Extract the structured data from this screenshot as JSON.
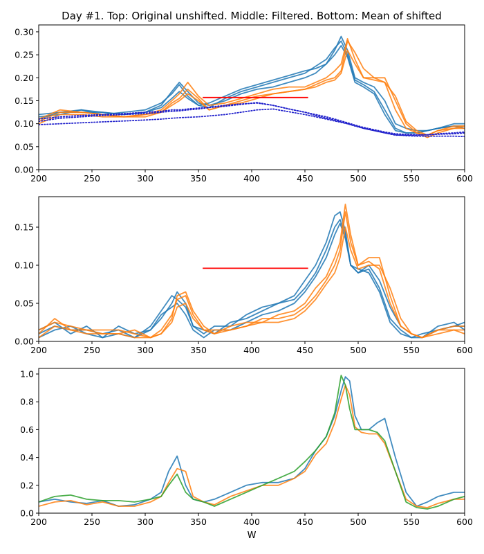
{
  "title": "Day #1. Top: Original unshifted. Middle: Filtered. Bottom: Mean of shifted",
  "colors": {
    "blue": "#1f77b4",
    "orange": "#ff7f0e",
    "green": "#2ca02c",
    "red": "#ff0000",
    "dotted": "#2222cc"
  },
  "chart_data": [
    {
      "type": "line",
      "panel": "top",
      "xlabel": "",
      "ylabel": "",
      "xlim": [
        200,
        600
      ],
      "ylim": [
        0,
        0.315
      ],
      "xticks": [
        200,
        250,
        300,
        350,
        400,
        450,
        500,
        550,
        600
      ],
      "yticks": [
        0.0,
        0.05,
        0.1,
        0.15,
        0.2,
        0.25,
        0.3
      ],
      "ytick_decimals": 2,
      "x": [
        200,
        220,
        240,
        260,
        280,
        300,
        315,
        325,
        332,
        340,
        350,
        360,
        375,
        390,
        405,
        420,
        435,
        450,
        460,
        470,
        478,
        484,
        490,
        497,
        505,
        515,
        525,
        535,
        545,
        555,
        565,
        575,
        590,
        600
      ],
      "series": [
        {
          "color": "blue",
          "values": [
            0.12,
            0.125,
            0.13,
            0.125,
            0.12,
            0.125,
            0.14,
            0.17,
            0.19,
            0.17,
            0.145,
            0.14,
            0.15,
            0.165,
            0.175,
            0.18,
            0.19,
            0.2,
            0.21,
            0.23,
            0.26,
            0.29,
            0.26,
            0.2,
            0.19,
            0.18,
            0.15,
            0.1,
            0.09,
            0.085,
            0.085,
            0.09,
            0.095,
            0.095
          ]
        },
        {
          "color": "blue",
          "values": [
            0.115,
            0.12,
            0.13,
            0.12,
            0.125,
            0.13,
            0.145,
            0.165,
            0.185,
            0.16,
            0.14,
            0.135,
            0.155,
            0.17,
            0.18,
            0.19,
            0.2,
            0.21,
            0.225,
            0.24,
            0.265,
            0.28,
            0.25,
            0.195,
            0.185,
            0.17,
            0.13,
            0.09,
            0.08,
            0.08,
            0.085,
            0.09,
            0.095,
            0.09
          ]
        },
        {
          "color": "blue",
          "values": [
            0.11,
            0.125,
            0.125,
            0.125,
            0.12,
            0.125,
            0.135,
            0.155,
            0.17,
            0.155,
            0.14,
            0.145,
            0.16,
            0.175,
            0.185,
            0.195,
            0.205,
            0.215,
            0.22,
            0.23,
            0.25,
            0.27,
            0.245,
            0.19,
            0.18,
            0.165,
            0.12,
            0.085,
            0.08,
            0.08,
            0.085,
            0.09,
            0.1,
            0.1
          ]
        },
        {
          "color": "orange",
          "values": [
            0.11,
            0.13,
            0.125,
            0.12,
            0.115,
            0.12,
            0.13,
            0.15,
            0.165,
            0.19,
            0.16,
            0.14,
            0.145,
            0.155,
            0.165,
            0.175,
            0.18,
            0.18,
            0.19,
            0.2,
            0.215,
            0.23,
            0.285,
            0.24,
            0.2,
            0.2,
            0.19,
            0.13,
            0.09,
            0.08,
            0.07,
            0.08,
            0.09,
            0.095
          ]
        },
        {
          "color": "orange",
          "values": [
            0.105,
            0.125,
            0.125,
            0.12,
            0.115,
            0.115,
            0.125,
            0.145,
            0.155,
            0.175,
            0.155,
            0.13,
            0.14,
            0.15,
            0.16,
            0.165,
            0.17,
            0.175,
            0.185,
            0.195,
            0.2,
            0.215,
            0.28,
            0.255,
            0.22,
            0.2,
            0.2,
            0.15,
            0.1,
            0.08,
            0.075,
            0.085,
            0.09,
            0.09
          ]
        },
        {
          "color": "orange",
          "values": [
            0.1,
            0.12,
            0.12,
            0.115,
            0.115,
            0.12,
            0.125,
            0.14,
            0.15,
            0.165,
            0.15,
            0.13,
            0.14,
            0.145,
            0.155,
            0.165,
            0.17,
            0.175,
            0.18,
            0.19,
            0.195,
            0.21,
            0.26,
            0.23,
            0.2,
            0.195,
            0.19,
            0.16,
            0.105,
            0.085,
            0.075,
            0.085,
            0.095,
            0.095
          ]
        },
        {
          "color": "dotted",
          "dotted": true,
          "values": [
            0.105,
            0.112,
            0.115,
            0.118,
            0.12,
            0.122,
            0.125,
            0.127,
            0.128,
            0.13,
            0.132,
            0.135,
            0.138,
            0.142,
            0.146,
            0.14,
            0.132,
            0.125,
            0.118,
            0.112,
            0.108,
            0.104,
            0.1,
            0.096,
            0.09,
            0.085,
            0.08,
            0.075,
            0.075,
            0.075,
            0.076,
            0.078,
            0.08,
            0.082
          ]
        },
        {
          "color": "dotted",
          "dotted": true,
          "values": [
            0.11,
            0.115,
            0.118,
            0.12,
            0.122,
            0.125,
            0.127,
            0.13,
            0.13,
            0.132,
            0.134,
            0.136,
            0.14,
            0.143,
            0.145,
            0.14,
            0.132,
            0.125,
            0.12,
            0.115,
            0.11,
            0.106,
            0.102,
            0.097,
            0.092,
            0.087,
            0.082,
            0.078,
            0.077,
            0.076,
            0.076,
            0.077,
            0.078,
            0.08
          ]
        },
        {
          "color": "dotted",
          "dotted": true,
          "values": [
            0.098,
            0.1,
            0.102,
            0.104,
            0.106,
            0.108,
            0.11,
            0.112,
            0.113,
            0.114,
            0.115,
            0.117,
            0.12,
            0.125,
            0.13,
            0.132,
            0.126,
            0.12,
            0.115,
            0.11,
            0.106,
            0.103,
            0.1,
            0.095,
            0.09,
            0.085,
            0.08,
            0.076,
            0.074,
            0.073,
            0.073,
            0.073,
            0.073,
            0.072
          ]
        }
      ],
      "hlines": [
        {
          "color": "red",
          "x": [
            354,
            453
          ],
          "y": 0.157
        }
      ]
    },
    {
      "type": "line",
      "panel": "middle",
      "xlabel": "",
      "ylabel": "",
      "xlim": [
        200,
        600
      ],
      "ylim": [
        0,
        0.19
      ],
      "xticks": [
        200,
        250,
        300,
        350,
        400,
        450,
        500,
        550,
        600
      ],
      "yticks": [
        0.0,
        0.05,
        0.1,
        0.15
      ],
      "ytick_decimals": 2,
      "x": [
        200,
        215,
        230,
        245,
        260,
        275,
        290,
        305,
        315,
        325,
        330,
        338,
        345,
        355,
        365,
        380,
        395,
        410,
        425,
        440,
        450,
        460,
        470,
        478,
        483,
        488,
        493,
        500,
        510,
        520,
        530,
        540,
        550,
        560,
        575,
        590,
        600
      ],
      "series": [
        {
          "color": "blue",
          "values": [
            0.015,
            0.025,
            0.01,
            0.02,
            0.005,
            0.02,
            0.01,
            0.015,
            0.03,
            0.05,
            0.065,
            0.05,
            0.02,
            0.015,
            0.01,
            0.025,
            0.03,
            0.04,
            0.05,
            0.06,
            0.08,
            0.1,
            0.13,
            0.165,
            0.17,
            0.145,
            0.1,
            0.09,
            0.1,
            0.08,
            0.045,
            0.02,
            0.01,
            0.005,
            0.015,
            0.02,
            0.02
          ]
        },
        {
          "color": "blue",
          "values": [
            0.01,
            0.02,
            0.015,
            0.015,
            0.01,
            0.015,
            0.005,
            0.02,
            0.04,
            0.06,
            0.055,
            0.045,
            0.02,
            0.01,
            0.02,
            0.02,
            0.035,
            0.045,
            0.05,
            0.055,
            0.07,
            0.09,
            0.12,
            0.15,
            0.16,
            0.14,
            0.1,
            0.09,
            0.095,
            0.07,
            0.03,
            0.015,
            0.005,
            0.005,
            0.02,
            0.025,
            0.015
          ]
        },
        {
          "color": "blue",
          "values": [
            0.005,
            0.015,
            0.02,
            0.01,
            0.005,
            0.01,
            0.005,
            0.015,
            0.035,
            0.045,
            0.05,
            0.035,
            0.015,
            0.005,
            0.015,
            0.015,
            0.025,
            0.035,
            0.04,
            0.05,
            0.065,
            0.085,
            0.11,
            0.14,
            0.155,
            0.135,
            0.1,
            0.095,
            0.09,
            0.065,
            0.025,
            0.01,
            0.005,
            0.01,
            0.015,
            0.02,
            0.025
          ]
        },
        {
          "color": "orange",
          "values": [
            0.015,
            0.025,
            0.02,
            0.015,
            0.01,
            0.01,
            0.015,
            0.005,
            0.01,
            0.03,
            0.06,
            0.065,
            0.04,
            0.02,
            0.01,
            0.02,
            0.025,
            0.025,
            0.035,
            0.04,
            0.05,
            0.07,
            0.085,
            0.11,
            0.13,
            0.18,
            0.14,
            0.1,
            0.11,
            0.11,
            0.06,
            0.02,
            0.01,
            0.005,
            0.015,
            0.02,
            0.02
          ]
        },
        {
          "color": "orange",
          "values": [
            0.01,
            0.03,
            0.015,
            0.015,
            0.015,
            0.015,
            0.01,
            0.005,
            0.015,
            0.035,
            0.055,
            0.06,
            0.035,
            0.015,
            0.015,
            0.015,
            0.02,
            0.03,
            0.03,
            0.035,
            0.045,
            0.06,
            0.08,
            0.1,
            0.12,
            0.17,
            0.13,
            0.1,
            0.105,
            0.095,
            0.05,
            0.02,
            0.01,
            0.005,
            0.015,
            0.015,
            0.015
          ]
        },
        {
          "color": "orange",
          "values": [
            0.005,
            0.02,
            0.015,
            0.01,
            0.01,
            0.01,
            0.005,
            0.005,
            0.01,
            0.025,
            0.045,
            0.05,
            0.03,
            0.015,
            0.01,
            0.015,
            0.02,
            0.025,
            0.025,
            0.03,
            0.04,
            0.055,
            0.075,
            0.09,
            0.11,
            0.15,
            0.12,
            0.095,
            0.1,
            0.1,
            0.07,
            0.03,
            0.01,
            0.005,
            0.01,
            0.015,
            0.01
          ]
        }
      ],
      "hlines": [
        {
          "color": "red",
          "x": [
            354,
            453
          ],
          "y": 0.096
        }
      ]
    },
    {
      "type": "line",
      "panel": "bottom",
      "xlabel": "W",
      "ylabel": "",
      "xlim": [
        200,
        600
      ],
      "ylim": [
        0,
        1.04
      ],
      "xticks": [
        200,
        250,
        300,
        350,
        400,
        450,
        500,
        550,
        600
      ],
      "yticks": [
        0.0,
        0.2,
        0.4,
        0.6,
        0.8,
        1.0
      ],
      "ytick_decimals": 1,
      "x": [
        200,
        215,
        230,
        245,
        260,
        275,
        290,
        305,
        315,
        322,
        330,
        338,
        345,
        355,
        365,
        380,
        395,
        410,
        425,
        440,
        450,
        460,
        470,
        478,
        484,
        488,
        492,
        497,
        503,
        510,
        518,
        525,
        535,
        545,
        555,
        565,
        575,
        590,
        600
      ],
      "series": [
        {
          "color": "blue",
          "values": [
            0.08,
            0.1,
            0.08,
            0.07,
            0.09,
            0.05,
            0.06,
            0.1,
            0.15,
            0.3,
            0.41,
            0.2,
            0.1,
            0.08,
            0.1,
            0.15,
            0.2,
            0.22,
            0.22,
            0.25,
            0.32,
            0.45,
            0.55,
            0.7,
            0.88,
            0.98,
            0.95,
            0.7,
            0.6,
            0.6,
            0.65,
            0.68,
            0.4,
            0.15,
            0.05,
            0.08,
            0.12,
            0.15,
            0.15
          ]
        },
        {
          "color": "orange",
          "values": [
            0.05,
            0.08,
            0.09,
            0.06,
            0.08,
            0.05,
            0.05,
            0.08,
            0.12,
            0.22,
            0.32,
            0.3,
            0.12,
            0.08,
            0.06,
            0.12,
            0.16,
            0.2,
            0.2,
            0.25,
            0.3,
            0.42,
            0.5,
            0.65,
            0.82,
            0.92,
            0.85,
            0.62,
            0.58,
            0.57,
            0.57,
            0.5,
            0.3,
            0.1,
            0.05,
            0.04,
            0.07,
            0.1,
            0.1
          ]
        },
        {
          "color": "green",
          "values": [
            0.08,
            0.12,
            0.13,
            0.1,
            0.09,
            0.09,
            0.08,
            0.1,
            0.12,
            0.2,
            0.28,
            0.15,
            0.1,
            0.08,
            0.05,
            0.1,
            0.15,
            0.2,
            0.25,
            0.3,
            0.37,
            0.45,
            0.55,
            0.72,
            0.99,
            0.92,
            0.75,
            0.6,
            0.6,
            0.6,
            0.58,
            0.52,
            0.3,
            0.08,
            0.04,
            0.03,
            0.05,
            0.1,
            0.12
          ]
        }
      ],
      "hlines": []
    }
  ]
}
